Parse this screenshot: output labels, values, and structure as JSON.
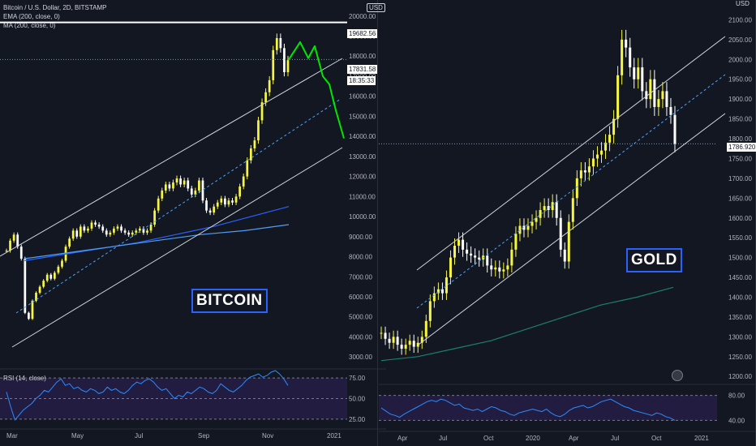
{
  "bitcoin": {
    "legend": {
      "title": "Bitcoin / U.S. Dollar, 2D, BITSTAMP",
      "ema": "EMA (200, close, 0)",
      "ma": "MA (200, close, 0)"
    },
    "label": "BITCOIN",
    "price_tags": {
      "resistance": "19682.56",
      "last": "17831.58",
      "countdown": "18:35:33"
    },
    "rsi_label": "RSI (14, close)"
  },
  "gold": {
    "label": "GOLD",
    "usd": "USD",
    "last_tag": "1786.920"
  },
  "colors": {
    "background": "#131722",
    "candle": "#f5f542",
    "channel": "#d1d4dc",
    "ma_blue": "#2962ff",
    "ema_lightblue": "#4f9ef5",
    "ma_teal": "#1b7f6e",
    "projection": "#00e600",
    "rsi_line": "#2b8cff",
    "dotted": "#4aa3ff"
  },
  "chart_data": [
    {
      "type": "candlestick",
      "title": "Bitcoin / U.S. Dollar, 2D, BITSTAMP",
      "y_axis": {
        "ticks": [
          3000,
          4000,
          5000,
          6000,
          7000,
          8000,
          9000,
          10000,
          11000,
          12000,
          13000,
          14000,
          15000,
          16000,
          17000,
          18000,
          19000,
          20000
        ],
        "labels": [
          "3000.00",
          "4000.00",
          "5000.00",
          "6000.00",
          "7000.00",
          "8000.00",
          "9000.00",
          "10000.00",
          "11000.00",
          "12000.00",
          "13000.00",
          "14000.00",
          "15000.00",
          "16000.00",
          "17000.00",
          "18000.00",
          "19000.00",
          "20000.00"
        ],
        "range": [
          2400,
          20800
        ]
      },
      "x_axis": {
        "labels": [
          "Mar",
          "May",
          "Jul",
          "Sep",
          "Nov",
          "2021"
        ],
        "positions": [
          8,
          88,
          166,
          244,
          323,
          403
        ]
      },
      "close_path": [
        8300,
        8800,
        9100,
        8500,
        7900,
        5200,
        4900,
        5800,
        6200,
        6500,
        6800,
        7100,
        6900,
        7200,
        7500,
        7800,
        8500,
        8900,
        9300,
        9000,
        9500,
        9300,
        9400,
        9700,
        9600,
        9500,
        9300,
        9100,
        9200,
        9400,
        9500,
        9300,
        9200,
        9100,
        9200,
        9300,
        9400,
        9200,
        9300,
        9600,
        10300,
        10900,
        11300,
        11600,
        11400,
        11700,
        11900,
        11600,
        11800,
        11400,
        11100,
        11300,
        11800,
        10800,
        10300,
        10200,
        10500,
        10700,
        10900,
        10600,
        10800,
        10700,
        11000,
        11500,
        12000,
        12800,
        13400,
        13800,
        14800,
        15700,
        16200,
        16800,
        18300,
        18900,
        18400,
        17200,
        17800
      ],
      "annotated_levels": [
        19682.56,
        17831.58
      ],
      "series": [
        {
          "name": "EMA (200, close, 0)",
          "values": [
            7800,
            8100,
            8400,
            8700,
            9100,
            9500,
            10000,
            10500
          ]
        },
        {
          "name": "MA (200, close, 0)",
          "values": [
            7900,
            8200,
            8500,
            8800,
            9100,
            9300,
            9600
          ]
        }
      ],
      "projection": [
        17831.58,
        18700,
        17900,
        18500,
        17000,
        16600,
        15300,
        13900
      ],
      "rsi": {
        "levels": [
          "75.00",
          "50.00",
          "25.00"
        ],
        "range": [
          15,
          85
        ],
        "values": [
          58,
          40,
          24,
          30,
          36,
          40,
          44,
          50,
          54,
          60,
          58,
          64,
          70,
          74,
          66,
          68,
          62,
          64,
          60,
          58,
          62,
          60,
          56,
          58,
          64,
          60,
          62,
          58,
          56,
          60,
          66,
          70,
          68,
          72,
          74,
          70,
          64,
          60,
          62,
          56,
          50,
          54,
          52,
          58,
          56,
          60,
          64,
          62,
          58,
          56,
          60,
          68,
          64,
          60,
          58,
          62,
          66,
          72,
          76,
          78,
          80,
          76,
          78,
          82,
          84,
          80,
          74,
          66
        ]
      }
    },
    {
      "type": "candlestick",
      "title": "",
      "y_axis": {
        "ticks": [
          1200,
          1250,
          1300,
          1350,
          1400,
          1450,
          1500,
          1550,
          1600,
          1650,
          1700,
          1750,
          1800,
          1850,
          1900,
          1950,
          2000,
          2050,
          2100
        ],
        "labels": [
          "1200.00",
          "1250.00",
          "1300.00",
          "1350.00",
          "1400.00",
          "1450.00",
          "1500.00",
          "1550.00",
          "1600.00",
          "1650.00",
          "1700.00",
          "1750.00",
          "1800.00",
          "1850.00",
          "1900.00",
          "1950.00",
          "2000.00",
          "2050.00",
          "2100.00"
        ],
        "range": [
          1180,
          2150
        ]
      },
      "x_axis": {
        "labels": [
          "Apr",
          "Jul",
          "Oct",
          "2020",
          "Apr",
          "Jul",
          "Oct",
          "2021"
        ],
        "positions": [
          490,
          541,
          596,
          648,
          701,
          753,
          803,
          856
        ]
      },
      "close_path": [
        1310,
        1295,
        1285,
        1300,
        1280,
        1270,
        1280,
        1290,
        1275,
        1285,
        1300,
        1340,
        1390,
        1410,
        1420,
        1410,
        1450,
        1500,
        1530,
        1545,
        1520,
        1510,
        1505,
        1500,
        1495,
        1505,
        1480,
        1470,
        1475,
        1465,
        1470,
        1480,
        1520,
        1560,
        1580,
        1570,
        1580,
        1590,
        1600,
        1620,
        1630,
        1620,
        1640,
        1600,
        1520,
        1490,
        1590,
        1650,
        1700,
        1720,
        1715,
        1730,
        1750,
        1760,
        1770,
        1790,
        1810,
        1850,
        1960,
        2050,
        2030,
        1980,
        1950,
        1980,
        1920,
        1900,
        1950,
        1880,
        1900,
        1920,
        1880,
        1860,
        1786.92
      ],
      "annotated_levels": [
        1786.92
      ],
      "series": [
        {
          "name": "",
          "values": [
            1240,
            1250,
            1270,
            1290,
            1320,
            1350,
            1380,
            1400,
            1425
          ]
        }
      ],
      "rsi": {
        "levels": [
          "80.00",
          "40.00"
        ],
        "range": [
          25,
          95
        ],
        "values": [
          60,
          55,
          50,
          48,
          45,
          50,
          54,
          58,
          62,
          66,
          70,
          72,
          70,
          74,
          72,
          68,
          64,
          66,
          60,
          58,
          56,
          58,
          54,
          58,
          62,
          60,
          56,
          54,
          50,
          48,
          52,
          54,
          56,
          58,
          56,
          54,
          58,
          52,
          48,
          46,
          50,
          56,
          60,
          62,
          64,
          60,
          62,
          66,
          70,
          72,
          74,
          70,
          66,
          62,
          60,
          56,
          54,
          52,
          50,
          48,
          52,
          50,
          46,
          44,
          40
        ]
      }
    }
  ]
}
